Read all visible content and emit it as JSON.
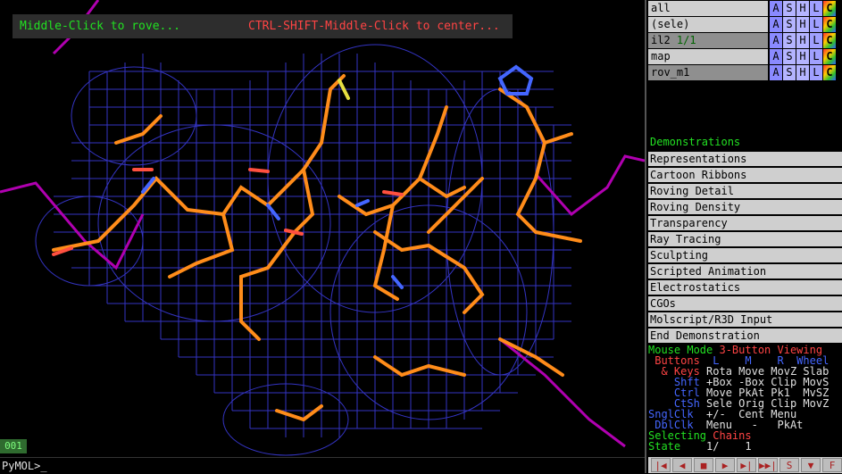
{
  "viewport": {
    "overlay_left": "Middle-Click to rove...",
    "overlay_right": "CTRL-SHIFT-Middle-Click to center...",
    "frame": "001",
    "command_prompt": "PyMOL>_"
  },
  "objects": [
    {
      "name": "all",
      "count": "",
      "buttons": [
        "A",
        "S",
        "H",
        "L",
        "C"
      ]
    },
    {
      "name": "(sele)",
      "count": "",
      "buttons": [
        "A",
        "S",
        "H",
        "L",
        "C"
      ]
    },
    {
      "name": "il2",
      "count": "1/1",
      "buttons": [
        "A",
        "S",
        "H",
        "L",
        "C"
      ]
    },
    {
      "name": "map",
      "count": "",
      "buttons": [
        "A",
        "S",
        "H",
        "L",
        "C"
      ]
    },
    {
      "name": "rov_m1",
      "count": "",
      "buttons": [
        "A",
        "S",
        "H",
        "L",
        "C"
      ]
    }
  ],
  "demo": {
    "title": "Demonstrations",
    "items": [
      "Representations",
      "Cartoon Ribbons",
      "Roving Detail",
      "Roving Density",
      "Transparency",
      "Ray Tracing",
      "Sculpting",
      "Scripted Animation",
      "Electrostatics",
      "CGOs",
      "Molscript/R3D Input",
      "End Demonstration"
    ]
  },
  "mouse": {
    "header_a": "Mouse Mode ",
    "header_b": "3-Button Viewing",
    "r1_a": " Buttons ",
    "r1_b": " L    M    R  Wheel",
    "r2_a": "  & Keys ",
    "r2_b": "Rota Move MovZ Slab",
    "r3_a": "    Shft ",
    "r3_b": "+Box -Box Clip MovS",
    "r4_a": "    Ctrl ",
    "r4_b": "Move PkAt Pk1  MvSZ",
    "r5_a": "    CtSh ",
    "r5_b": "Sele Orig Clip MovZ",
    "r6_a": "SnglClk ",
    "r6_b": " +/-  Cent Menu",
    "r7_a": " DblClk ",
    "r7_b": " Menu   -   PkAt",
    "sel_a": "Selecting ",
    "sel_b": "Chains",
    "state_a": "State ",
    "state_b": "   1/    1"
  },
  "transport": [
    "|◀",
    "◀",
    "■",
    "▶",
    "▶|",
    "▶▶|",
    "S",
    "▼",
    "F"
  ],
  "colors": {
    "accent_green": "#22e022",
    "mesh": "#3a3ad8",
    "stick": "#ff8c1a",
    "ribbon": "#b000b0"
  }
}
